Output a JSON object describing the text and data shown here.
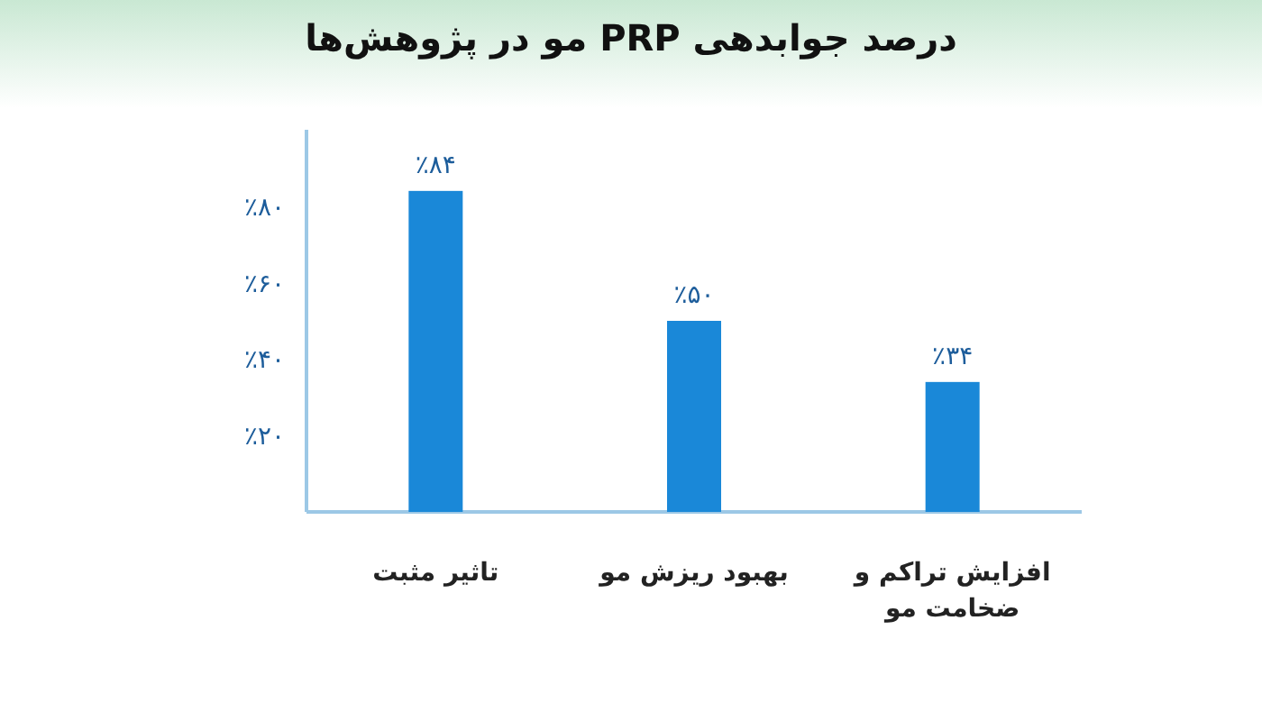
{
  "chart_data": {
    "type": "bar",
    "title": "درصد جوابدهی PRP مو در پژوهش‌ها",
    "categories": [
      "تاثیر مثبت",
      "بهبود ریزش مو",
      "افزایش تراکم و ضخامت مو"
    ],
    "values": [
      84,
      50,
      34
    ],
    "value_labels": [
      "٪۸۴",
      "٪۵۰",
      "٪۳۴"
    ],
    "color": "#1a88d8",
    "ylim": [
      0,
      100
    ],
    "yticks": [
      {
        "value": 20,
        "label": "٪۲۰"
      },
      {
        "value": 40,
        "label": "٪۴۰"
      },
      {
        "value": 60,
        "label": "٪۶۰"
      },
      {
        "value": 80,
        "label": "٪۸۰"
      }
    ]
  }
}
